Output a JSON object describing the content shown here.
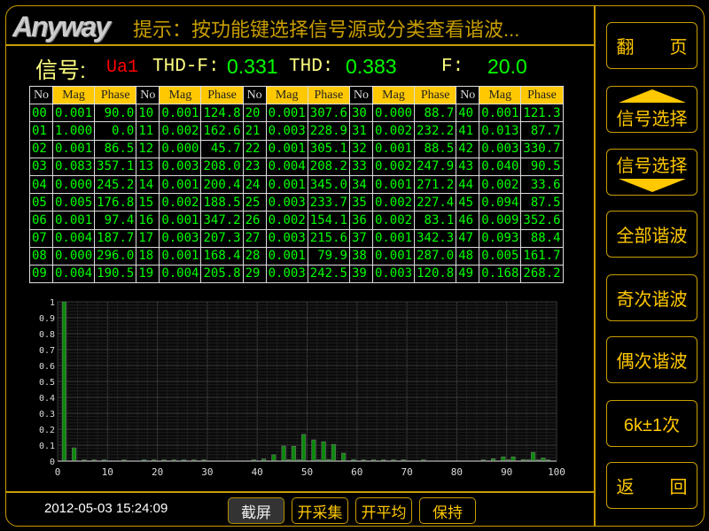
{
  "header": {
    "logo": "Anyway",
    "hint": "提示：按功能键选择信号源或分类查看谐波..."
  },
  "info": {
    "signal_label": "信号:",
    "signal": "Ua1",
    "thdf_label": "THD-F:",
    "thdf": "0.331",
    "thd_label": "THD:",
    "thd": "0.383",
    "f_label": "F:",
    "f": "20.0"
  },
  "table": {
    "headers": [
      "No",
      "Mag",
      "Phase"
    ],
    "rows": [
      [
        [
          "00",
          "0.001",
          "90.0"
        ],
        [
          "10",
          "0.001",
          "124.8"
        ],
        [
          "20",
          "0.001",
          "307.6"
        ],
        [
          "30",
          "0.000",
          "88.7"
        ],
        [
          "40",
          "0.001",
          "121.3"
        ]
      ],
      [
        [
          "01",
          "1.000",
          "0.0"
        ],
        [
          "11",
          "0.002",
          "162.6"
        ],
        [
          "21",
          "0.003",
          "228.9"
        ],
        [
          "31",
          "0.002",
          "232.2"
        ],
        [
          "41",
          "0.013",
          "87.7"
        ]
      ],
      [
        [
          "02",
          "0.001",
          "86.5"
        ],
        [
          "12",
          "0.000",
          "45.7"
        ],
        [
          "22",
          "0.001",
          "305.1"
        ],
        [
          "32",
          "0.001",
          "88.5"
        ],
        [
          "42",
          "0.003",
          "330.7"
        ]
      ],
      [
        [
          "03",
          "0.083",
          "357.1"
        ],
        [
          "13",
          "0.003",
          "208.0"
        ],
        [
          "23",
          "0.004",
          "208.2"
        ],
        [
          "33",
          "0.002",
          "247.9"
        ],
        [
          "43",
          "0.040",
          "90.5"
        ]
      ],
      [
        [
          "04",
          "0.000",
          "245.2"
        ],
        [
          "14",
          "0.001",
          "200.4"
        ],
        [
          "24",
          "0.001",
          "345.0"
        ],
        [
          "34",
          "0.001",
          "271.2"
        ],
        [
          "44",
          "0.002",
          "33.6"
        ]
      ],
      [
        [
          "05",
          "0.005",
          "176.8"
        ],
        [
          "15",
          "0.002",
          "188.5"
        ],
        [
          "25",
          "0.003",
          "233.7"
        ],
        [
          "35",
          "0.002",
          "227.4"
        ],
        [
          "45",
          "0.094",
          "87.5"
        ]
      ],
      [
        [
          "06",
          "0.001",
          "97.4"
        ],
        [
          "16",
          "0.001",
          "347.2"
        ],
        [
          "26",
          "0.002",
          "154.1"
        ],
        [
          "36",
          "0.002",
          "83.1"
        ],
        [
          "46",
          "0.009",
          "352.6"
        ]
      ],
      [
        [
          "07",
          "0.004",
          "187.7"
        ],
        [
          "17",
          "0.003",
          "207.3"
        ],
        [
          "27",
          "0.003",
          "215.6"
        ],
        [
          "37",
          "0.001",
          "342.3"
        ],
        [
          "47",
          "0.093",
          "88.4"
        ]
      ],
      [
        [
          "08",
          "0.000",
          "296.0"
        ],
        [
          "18",
          "0.001",
          "168.4"
        ],
        [
          "28",
          "0.001",
          "79.9"
        ],
        [
          "38",
          "0.001",
          "287.0"
        ],
        [
          "48",
          "0.005",
          "161.7"
        ]
      ],
      [
        [
          "09",
          "0.004",
          "190.5"
        ],
        [
          "19",
          "0.004",
          "205.8"
        ],
        [
          "29",
          "0.003",
          "242.5"
        ],
        [
          "39",
          "0.003",
          "120.8"
        ],
        [
          "49",
          "0.168",
          "268.2"
        ]
      ]
    ]
  },
  "chart_data": {
    "type": "bar",
    "xlim": [
      0,
      100
    ],
    "ylim": [
      0,
      1
    ],
    "grid": true,
    "xticks": [
      "0",
      "10",
      "20",
      "30",
      "40",
      "50",
      "60",
      "70",
      "80",
      "90",
      "100"
    ],
    "yticks": [
      "0",
      "0.1",
      "0.2",
      "0.3",
      "0.4",
      "0.5",
      "0.6",
      "0.7",
      "0.8",
      "0.9",
      "1"
    ],
    "x": [
      1,
      3,
      5,
      7,
      9,
      13,
      17,
      19,
      21,
      23,
      25,
      27,
      29,
      39,
      41,
      43,
      45,
      46,
      47,
      48,
      49,
      51,
      52,
      53,
      54,
      55,
      57,
      59,
      61,
      63,
      65,
      67,
      69,
      73,
      85,
      87,
      89,
      90,
      91,
      93,
      94,
      95,
      96,
      97,
      98
    ],
    "values": [
      1.0,
      0.083,
      0.005,
      0.004,
      0.004,
      0.003,
      0.003,
      0.004,
      0.003,
      0.004,
      0.003,
      0.003,
      0.003,
      0.003,
      0.013,
      0.04,
      0.094,
      0.009,
      0.093,
      0.005,
      0.168,
      0.133,
      0.005,
      0.122,
      0.01,
      0.105,
      0.05,
      0.01,
      0.005,
      0.005,
      0.005,
      0.005,
      0.005,
      0.005,
      0.005,
      0.015,
      0.027,
      0.005,
      0.027,
      0.01,
      0.005,
      0.055,
      0.005,
      0.02,
      0.005
    ],
    "bar_color": "#0a8a0a"
  },
  "side_buttons": [
    "翻　　页",
    "信号选择",
    "信号选择",
    "全部谐波",
    "奇次谐波",
    "偶次谐波",
    "6k±1次",
    "返　　回"
  ],
  "bottom": {
    "time": "2012-05-03 15:24:09",
    "buttons": [
      "截屏",
      "开采集",
      "开平均",
      "保持"
    ]
  },
  "colors": {
    "accent": "#c89e00",
    "value": "#00ff00",
    "signal": "#ff0000",
    "header_bg": "#ffc800"
  }
}
